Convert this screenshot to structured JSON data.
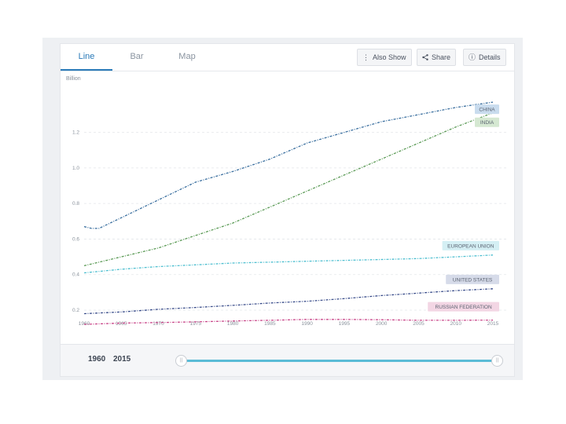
{
  "tabs": [
    {
      "label": "Line",
      "active": true
    },
    {
      "label": "Bar",
      "active": false
    },
    {
      "label": "Map",
      "active": false
    }
  ],
  "toolbar": {
    "also_show": "Also Show",
    "share": "Share",
    "details": "Details"
  },
  "range": {
    "start": "1960",
    "end": "2015"
  },
  "colors": {
    "accent": "#2a7ab8",
    "slider": "#5bbcd6"
  },
  "chart_data": {
    "type": "line",
    "ylabel": "Billion",
    "xlim": [
      1960,
      2015
    ],
    "ylim": [
      0.2,
      1.45
    ],
    "yticks": [
      "0.2",
      "0.4",
      "0.6",
      "0.8",
      "1.0",
      "1.2"
    ],
    "xticks": [
      "1960",
      "1965",
      "1970",
      "1975",
      "1980",
      "1985",
      "1990",
      "1995",
      "2000",
      "2005",
      "2010",
      "2015"
    ],
    "grid": true,
    "legend": "line-end labels",
    "series": [
      {
        "name": "CHINA",
        "color": "#3a6f9f",
        "label_bg": "#c9dcee",
        "x": [
          1960,
          1961,
          1962,
          1965,
          1970,
          1975,
          1980,
          1985,
          1990,
          1995,
          2000,
          2005,
          2010,
          2015
        ],
        "y": [
          0.67,
          0.66,
          0.66,
          0.72,
          0.82,
          0.92,
          0.98,
          1.05,
          1.14,
          1.2,
          1.26,
          1.3,
          1.34,
          1.37
        ]
      },
      {
        "name": "INDIA",
        "color": "#5a9a55",
        "label_bg": "#d5e8d2",
        "x": [
          1960,
          1965,
          1970,
          1975,
          1980,
          1985,
          1990,
          1995,
          2000,
          2005,
          2010,
          2015
        ],
        "y": [
          0.45,
          0.5,
          0.55,
          0.62,
          0.69,
          0.78,
          0.87,
          0.96,
          1.05,
          1.14,
          1.23,
          1.31
        ]
      },
      {
        "name": "EUROPEAN UNION",
        "color": "#4fbfd0",
        "label_bg": "#d4eff4",
        "x": [
          1960,
          1965,
          1970,
          1975,
          1980,
          1985,
          1990,
          1995,
          2000,
          2005,
          2010,
          2015
        ],
        "y": [
          0.41,
          0.43,
          0.445,
          0.455,
          0.465,
          0.47,
          0.475,
          0.48,
          0.485,
          0.49,
          0.5,
          0.51
        ]
      },
      {
        "name": "UNITED STATES",
        "color": "#3c4f8c",
        "label_bg": "#d6dbe9",
        "x": [
          1960,
          1965,
          1970,
          1975,
          1980,
          1985,
          1990,
          1995,
          2000,
          2005,
          2010,
          2015
        ],
        "y": [
          0.18,
          0.19,
          0.205,
          0.215,
          0.227,
          0.24,
          0.25,
          0.265,
          0.282,
          0.296,
          0.31,
          0.32
        ]
      },
      {
        "name": "RUSSIAN FEDERATION",
        "color": "#c9478a",
        "label_bg": "#f3d6e4",
        "x": [
          1960,
          1965,
          1970,
          1975,
          1980,
          1985,
          1990,
          1995,
          2000,
          2005,
          2010,
          2015
        ],
        "y": [
          0.12,
          0.127,
          0.13,
          0.134,
          0.139,
          0.143,
          0.148,
          0.148,
          0.146,
          0.143,
          0.143,
          0.144
        ]
      }
    ]
  }
}
